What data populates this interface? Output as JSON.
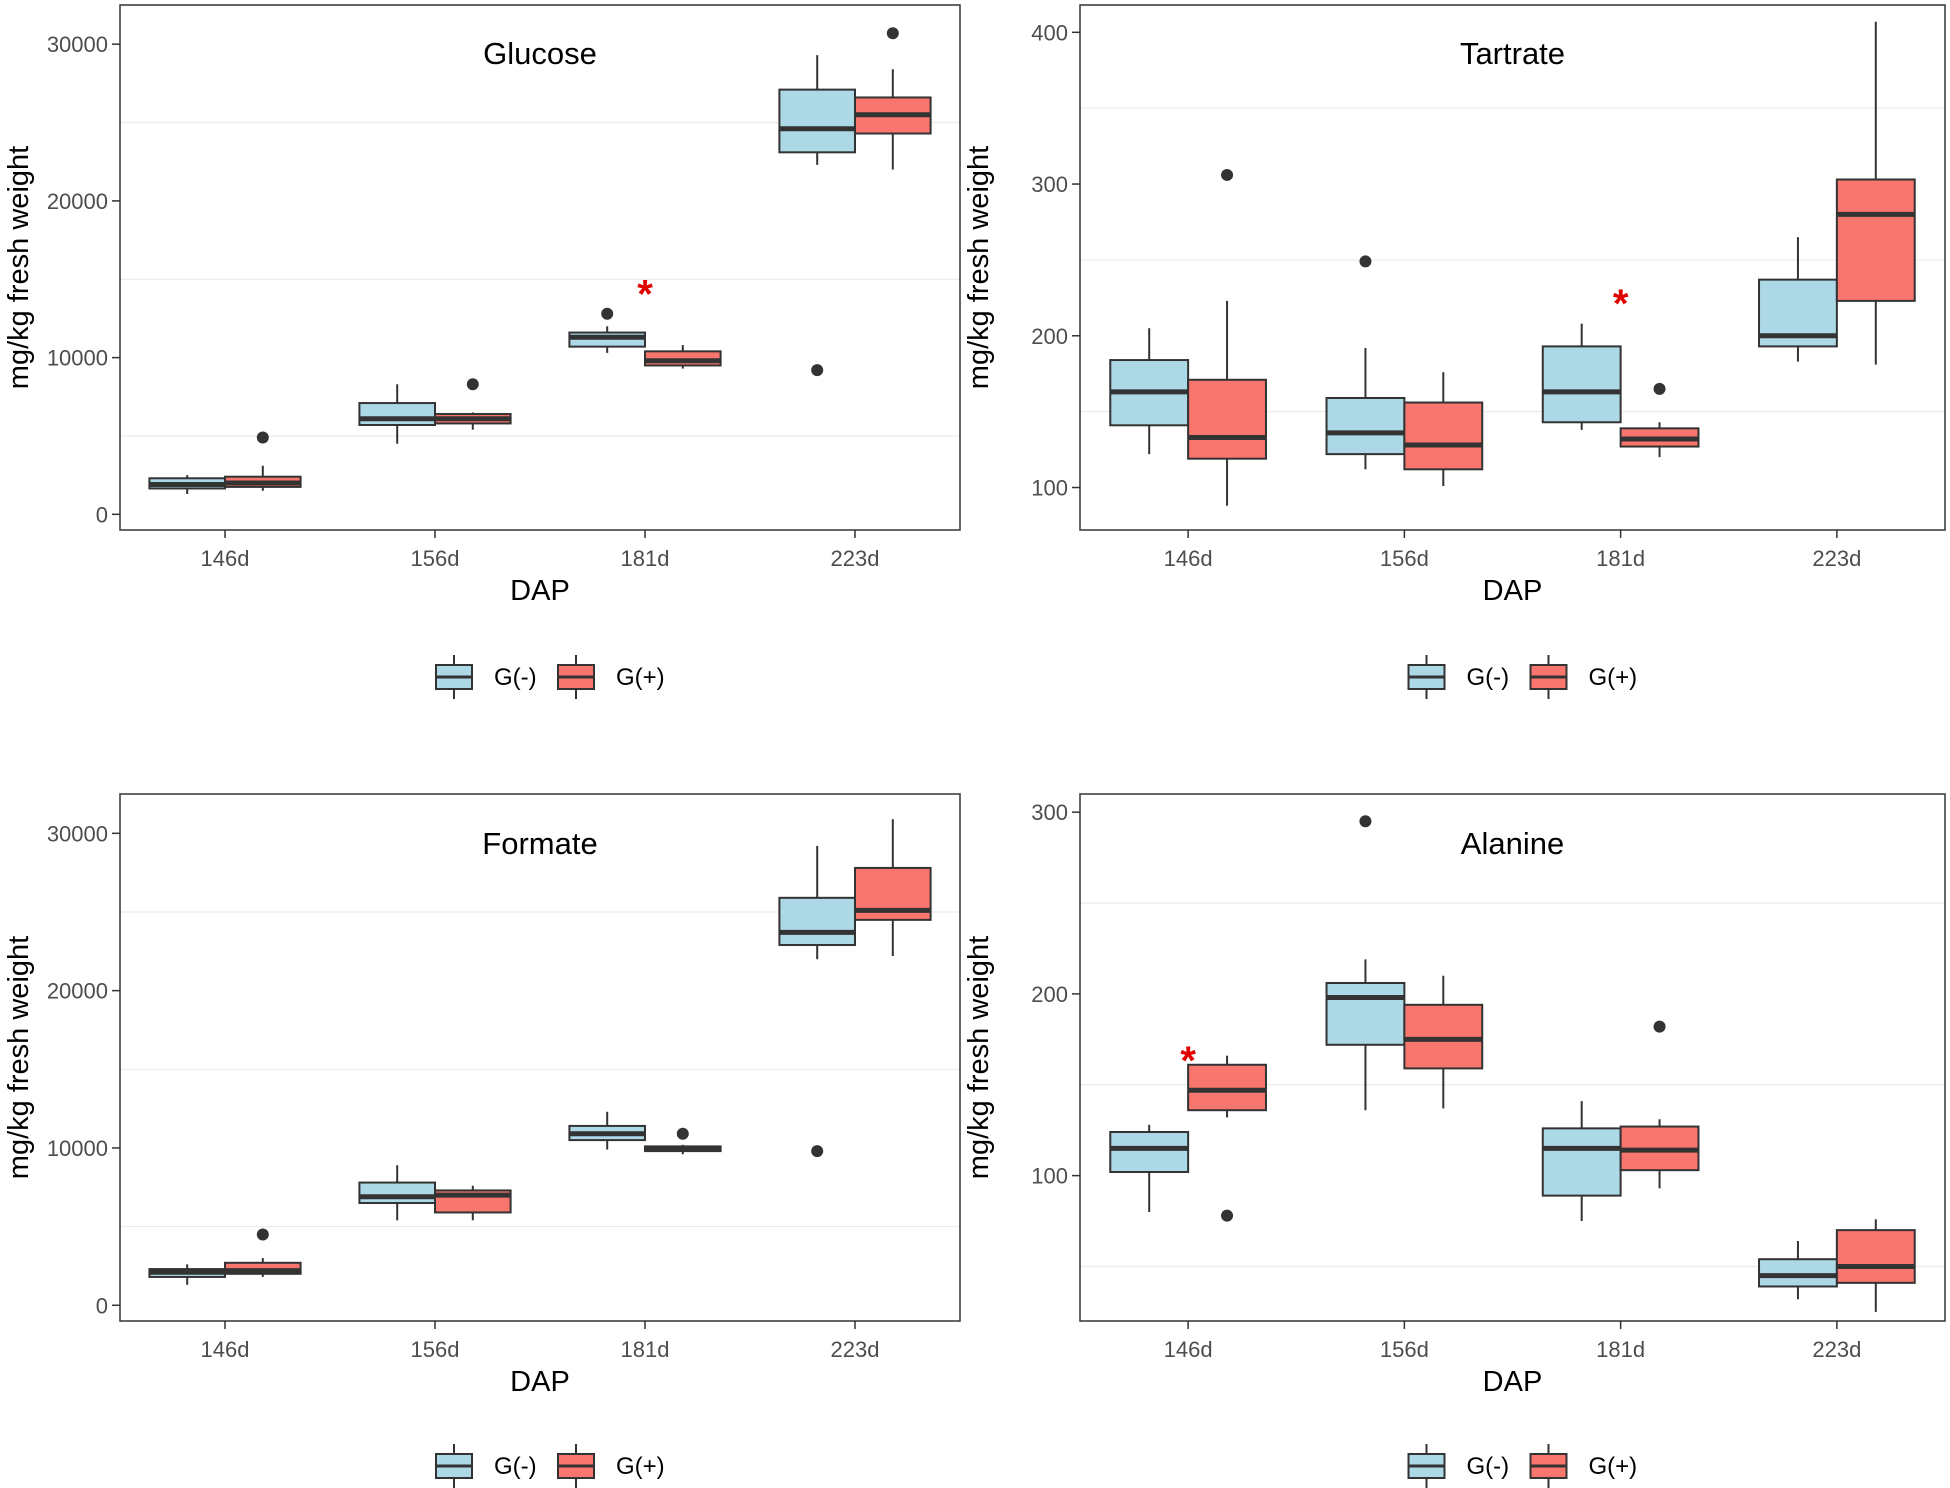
{
  "colors": {
    "g_minus": "#add8e6",
    "g_plus": "#f8766d",
    "line": "#333333",
    "grid": "#ebebeb",
    "sig": "#e00000"
  },
  "legend": {
    "items": [
      "G(-)",
      "G(+)"
    ]
  },
  "chart_data": [
    {
      "type": "box",
      "title": "Glucose",
      "xlabel": "DAP",
      "ylabel": "mg/kg fresh weight",
      "categories": [
        "146d",
        "156d",
        "181d",
        "223d"
      ],
      "ylim": [
        -1000,
        32500
      ],
      "yticks": [
        0,
        10000,
        20000,
        30000
      ],
      "ytick_labels": [
        "0",
        "10000",
        "20000",
        "30000"
      ],
      "minor_grid": [
        5000,
        15000,
        25000
      ],
      "significant": [
        {
          "category_index": 2,
          "y": 14600,
          "label": "*"
        }
      ],
      "series": [
        {
          "name": "G(-)",
          "boxes": [
            {
              "lower": 1300,
              "q1": 1650,
              "median": 1900,
              "q3": 2300,
              "upper": 2500,
              "outliers": []
            },
            {
              "lower": 4500,
              "q1": 5700,
              "median": 6100,
              "q3": 7100,
              "upper": 8300,
              "outliers": []
            },
            {
              "lower": 10300,
              "q1": 10700,
              "median": 11300,
              "q3": 11600,
              "upper": 12000,
              "outliers": [
                12800
              ]
            },
            {
              "lower": 22300,
              "q1": 23100,
              "median": 24600,
              "q3": 27100,
              "upper": 29300,
              "outliers": [
                9200
              ]
            }
          ]
        },
        {
          "name": "G(+)",
          "boxes": [
            {
              "lower": 1500,
              "q1": 1750,
              "median": 2000,
              "q3": 2400,
              "upper": 3100,
              "outliers": [
                4900
              ]
            },
            {
              "lower": 5400,
              "q1": 5800,
              "median": 6100,
              "q3": 6400,
              "upper": 6500,
              "outliers": [
                8300
              ]
            },
            {
              "lower": 9300,
              "q1": 9500,
              "median": 9800,
              "q3": 10400,
              "upper": 10800,
              "outliers": []
            },
            {
              "lower": 22000,
              "q1": 24300,
              "median": 25500,
              "q3": 26600,
              "upper": 28400,
              "outliers": [
                30700
              ]
            }
          ]
        }
      ]
    },
    {
      "type": "box",
      "title": "Tartrate",
      "xlabel": "DAP",
      "ylabel": "mg/kg fresh weight",
      "categories": [
        "146d",
        "156d",
        "181d",
        "223d"
      ],
      "ylim": [
        72,
        418
      ],
      "yticks": [
        100,
        200,
        300,
        400
      ],
      "ytick_labels": [
        "100",
        "200",
        "300",
        "400"
      ],
      "minor_grid": [
        150,
        250,
        350
      ],
      "significant": [
        {
          "category_index": 2,
          "y": 227,
          "label": "*"
        }
      ],
      "series": [
        {
          "name": "G(-)",
          "boxes": [
            {
              "lower": 122,
              "q1": 141,
              "median": 163,
              "q3": 184,
              "upper": 205,
              "outliers": []
            },
            {
              "lower": 112,
              "q1": 122,
              "median": 136,
              "q3": 159,
              "upper": 192,
              "outliers": [
                249
              ]
            },
            {
              "lower": 138,
              "q1": 143,
              "median": 163,
              "q3": 193,
              "upper": 208,
              "outliers": []
            },
            {
              "lower": 183,
              "q1": 193,
              "median": 200,
              "q3": 237,
              "upper": 265,
              "outliers": []
            }
          ]
        },
        {
          "name": "G(+)",
          "boxes": [
            {
              "lower": 88,
              "q1": 119,
              "median": 133,
              "q3": 171,
              "upper": 223,
              "outliers": [
                306
              ]
            },
            {
              "lower": 101,
              "q1": 112,
              "median": 128,
              "q3": 156,
              "upper": 176,
              "outliers": []
            },
            {
              "lower": 120,
              "q1": 127,
              "median": 132,
              "q3": 139,
              "upper": 143,
              "outliers": [
                165
              ]
            },
            {
              "lower": 181,
              "q1": 223,
              "median": 280,
              "q3": 303,
              "upper": 407,
              "outliers": []
            }
          ]
        }
      ]
    },
    {
      "type": "box",
      "title": "Formate",
      "xlabel": "DAP",
      "ylabel": "mg/kg fresh weight",
      "categories": [
        "146d",
        "156d",
        "181d",
        "223d"
      ],
      "ylim": [
        -1000,
        32500
      ],
      "yticks": [
        0,
        10000,
        20000,
        30000
      ],
      "ytick_labels": [
        "0",
        "10000",
        "20000",
        "30000"
      ],
      "minor_grid": [
        5000,
        15000,
        25000
      ],
      "significant": [],
      "series": [
        {
          "name": "G(-)",
          "boxes": [
            {
              "lower": 1300,
              "q1": 1800,
              "median": 2100,
              "q3": 2300,
              "upper": 2600,
              "outliers": []
            },
            {
              "lower": 5400,
              "q1": 6500,
              "median": 6900,
              "q3": 7800,
              "upper": 8900,
              "outliers": []
            },
            {
              "lower": 9900,
              "q1": 10500,
              "median": 10900,
              "q3": 11400,
              "upper": 12300,
              "outliers": []
            },
            {
              "lower": 22000,
              "q1": 22900,
              "median": 23700,
              "q3": 25900,
              "upper": 29200,
              "outliers": [
                9800
              ]
            }
          ]
        },
        {
          "name": "G(+)",
          "boxes": [
            {
              "lower": 1800,
              "q1": 2000,
              "median": 2200,
              "q3": 2700,
              "upper": 3000,
              "outliers": [
                4500
              ]
            },
            {
              "lower": 5400,
              "q1": 5900,
              "median": 7000,
              "q3": 7300,
              "upper": 7600,
              "outliers": []
            },
            {
              "lower": 9600,
              "q1": 9800,
              "median": 9900,
              "q3": 10100,
              "upper": 10200,
              "outliers": [
                10900
              ]
            },
            {
              "lower": 22200,
              "q1": 24500,
              "median": 25100,
              "q3": 27800,
              "upper": 30900,
              "outliers": []
            }
          ]
        }
      ]
    },
    {
      "type": "box",
      "title": "Alanine",
      "xlabel": "DAP",
      "ylabel": "mg/kg fresh weight",
      "categories": [
        "146d",
        "156d",
        "181d",
        "223d"
      ],
      "ylim": [
        20,
        310
      ],
      "yticks": [
        100,
        200,
        300
      ],
      "ytick_labels": [
        "100",
        "200",
        "300"
      ],
      "minor_grid": [
        50,
        150,
        250
      ],
      "significant": [
        {
          "category_index": 0,
          "y": 168,
          "label": "*"
        }
      ],
      "series": [
        {
          "name": "G(-)",
          "boxes": [
            {
              "lower": 80,
              "q1": 102,
              "median": 115,
              "q3": 124,
              "upper": 128,
              "outliers": []
            },
            {
              "lower": 136,
              "q1": 172,
              "median": 198,
              "q3": 206,
              "upper": 219,
              "outliers": [
                295
              ]
            },
            {
              "lower": 75,
              "q1": 89,
              "median": 115,
              "q3": 126,
              "upper": 141,
              "outliers": []
            },
            {
              "lower": 32,
              "q1": 39,
              "median": 45,
              "q3": 54,
              "upper": 64,
              "outliers": []
            }
          ]
        },
        {
          "name": "G(+)",
          "boxes": [
            {
              "lower": 132,
              "q1": 136,
              "median": 147,
              "q3": 161,
              "upper": 166,
              "outliers": [
                78
              ]
            },
            {
              "lower": 137,
              "q1": 159,
              "median": 175,
              "q3": 194,
              "upper": 210,
              "outliers": []
            },
            {
              "lower": 93,
              "q1": 103,
              "median": 114,
              "q3": 127,
              "upper": 131,
              "outliers": [
                182
              ]
            },
            {
              "lower": 25,
              "q1": 41,
              "median": 50,
              "q3": 70,
              "upper": 76,
              "outliers": []
            }
          ]
        }
      ]
    }
  ]
}
